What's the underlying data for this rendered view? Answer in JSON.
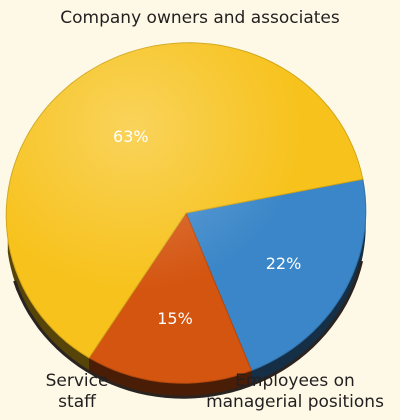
{
  "chart_data": {
    "type": "pie",
    "style": "3d",
    "slices": [
      {
        "label": "Company owners and associates",
        "value": 63,
        "value_label": "63%",
        "color": "#f7c21b"
      },
      {
        "label": "Employees on managerial positions",
        "value": 22,
        "value_label": "22%",
        "color": "#3a86c8"
      },
      {
        "label": "Service staff",
        "value": 15,
        "value_label": "15%",
        "color": "#d45510"
      }
    ],
    "category_labels": {
      "top": "Company owners and associates",
      "right": "Employees on\nmanagerial positions",
      "left": "Service\nstaff"
    }
  },
  "colors": {
    "background": "#fdf9e6",
    "side": "#2a2320",
    "text": "#231f20",
    "value_text": "#ffffff"
  }
}
